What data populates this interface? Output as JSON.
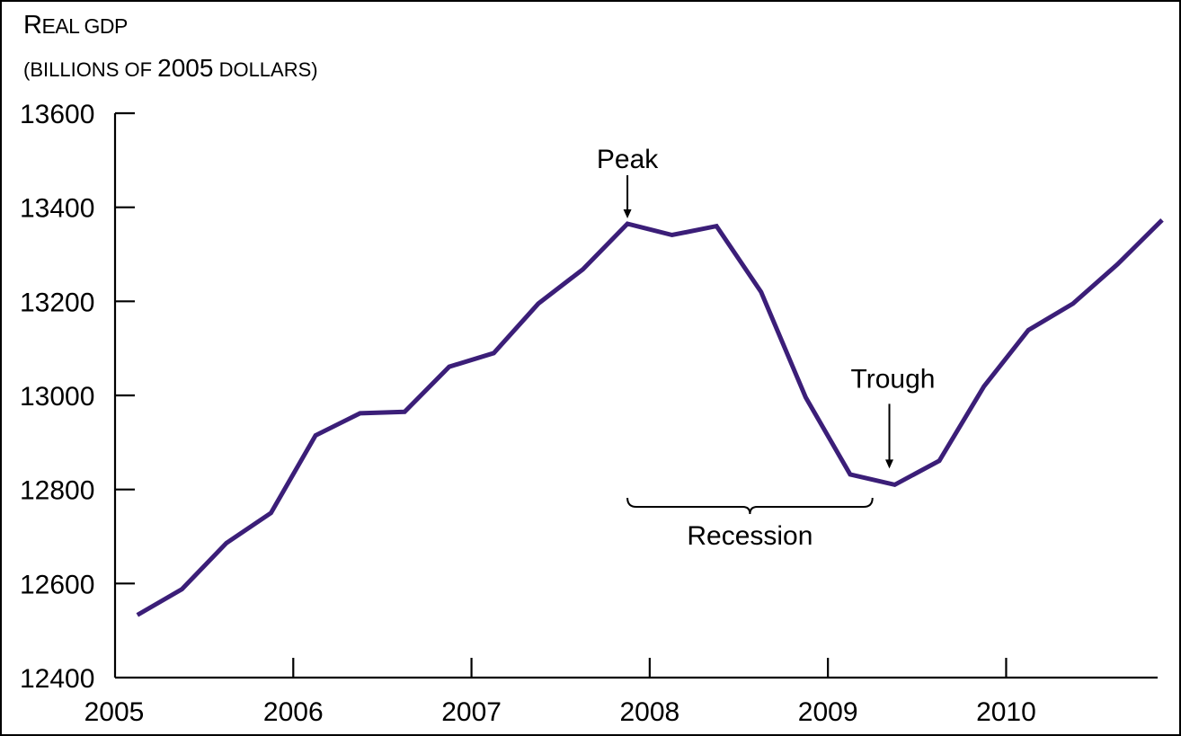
{
  "chart_data": {
    "type": "line",
    "title": "",
    "ylabel": {
      "line1_initial": "R",
      "line1_rest": "eal GDP",
      "line2_pre": "(billions of ",
      "line2_year": "2005",
      "line2_post": " dollars)"
    },
    "xlabel": "",
    "xlim": [
      2005.0,
      2010.85
    ],
    "ylim": [
      12400,
      13600
    ],
    "x_ticks": [
      2005,
      2006,
      2007,
      2008,
      2009,
      2010
    ],
    "x_tick_labels": [
      "2005",
      "2006",
      "2007",
      "2008",
      "2009",
      "2010"
    ],
    "y_ticks": [
      12400,
      12600,
      12800,
      13000,
      13200,
      13400,
      13600
    ],
    "y_tick_labels": [
      "12400",
      "12600",
      "12800",
      "13000",
      "13200",
      "13400",
      "13600"
    ],
    "grid": false,
    "line_color": "#3b1e78",
    "series": [
      {
        "x": [
          2005.125,
          2005.375,
          2005.625,
          2005.875,
          2006.125,
          2006.375,
          2006.625,
          2006.875,
          2007.125,
          2007.375,
          2007.625,
          2007.875,
          2008.125,
          2008.375,
          2008.625,
          2008.875,
          2009.125,
          2009.375,
          2009.625,
          2009.875,
          2010.125,
          2010.375,
          2010.625,
          2010.875
        ],
        "y": [
          12533,
          12588,
          12686,
          12750,
          12915,
          12962,
          12965,
          13061,
          13090,
          13195,
          13268,
          13365,
          13341,
          13360,
          13220,
          12996,
          12832,
          12810,
          12861,
          13019,
          13139,
          13195,
          13279,
          13373
        ]
      }
    ],
    "annotations": {
      "peak": {
        "label": "Peak",
        "x": 2007.875,
        "y": 13365
      },
      "trough": {
        "label": "Trough",
        "x": 2009.375,
        "y": 12810
      },
      "recession": {
        "label": "Recession",
        "x_start": 2007.875,
        "x_end": 2009.25
      }
    }
  }
}
